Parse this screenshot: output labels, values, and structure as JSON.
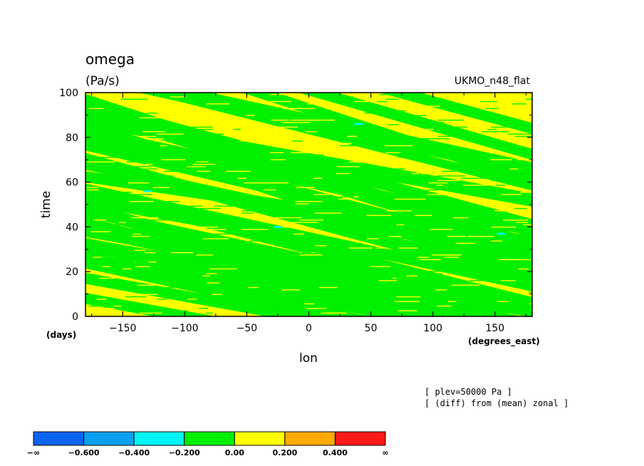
{
  "chart_data": {
    "type": "heatmap",
    "title": "omega",
    "units": "(Pa/s)",
    "dataset": "UKMO_n48_flat",
    "xlabel": "lon",
    "xunits": "(degrees_east)",
    "ylabel": "time",
    "yunits": "(days)",
    "xlim": [
      -180,
      180
    ],
    "ylim": [
      0,
      100
    ],
    "xticks": [
      -150,
      -100,
      -50,
      0,
      50,
      100,
      150
    ],
    "yticks": [
      0,
      20,
      40,
      60,
      80,
      100
    ],
    "annotations": [
      "[ plev=50000 Pa ]",
      "[ (diff) from (mean) zonal ]"
    ],
    "colorbar": {
      "labels": [
        "-∞",
        "-0.600",
        "-0.400",
        "-0.200",
        "0.00",
        "0.200",
        "0.400",
        "∞"
      ],
      "colors": [
        "#0a64f0",
        "#0aa0f0",
        "#00f5f5",
        "#00f000",
        "#ffff00",
        "#ffaa00",
        "#ff1a1a"
      ]
    },
    "background_bin_color": "#ffff00",
    "bands": [
      {
        "x0": -180,
        "y0": 95,
        "slope": -0.15,
        "width": 5
      },
      {
        "x0": -150,
        "y0": 92,
        "slope": -0.18,
        "width": 4
      },
      {
        "x0": -90,
        "y0": 96,
        "slope": -0.14,
        "width": 4
      },
      {
        "x0": 20,
        "y0": 98,
        "slope": -0.16,
        "width": 5
      },
      {
        "x0": 80,
        "y0": 99,
        "slope": -0.15,
        "width": 5
      },
      {
        "x0": -180,
        "y0": 82,
        "slope": -0.12,
        "width": 6
      },
      {
        "x0": -120,
        "y0": 82,
        "slope": -0.17,
        "width": 6
      },
      {
        "x0": 60,
        "y0": 82,
        "slope": -0.18,
        "width": 5
      },
      {
        "x0": 100,
        "y0": 75,
        "slope": -0.12,
        "width": 7
      },
      {
        "x0": -180,
        "y0": 68,
        "slope": -0.12,
        "width": 5
      },
      {
        "x0": -100,
        "y0": 70,
        "slope": -0.18,
        "width": 7
      },
      {
        "x0": -40,
        "y0": 60,
        "slope": -0.15,
        "width": 6
      },
      {
        "x0": 80,
        "y0": 62,
        "slope": -0.1,
        "width": 6
      },
      {
        "x0": -180,
        "y0": 52,
        "slope": -0.1,
        "width": 5
      },
      {
        "x0": -60,
        "y0": 52,
        "slope": -0.15,
        "width": 6
      },
      {
        "x0": 40,
        "y0": 48,
        "slope": -0.13,
        "width": 5
      },
      {
        "x0": -180,
        "y0": 42,
        "slope": -0.14,
        "width": 5
      },
      {
        "x0": -40,
        "y0": 40,
        "slope": -0.12,
        "width": 5
      },
      {
        "x0": 100,
        "y0": 40,
        "slope": -0.08,
        "width": 5
      },
      {
        "x0": -180,
        "y0": 30,
        "slope": -0.12,
        "width": 5
      },
      {
        "x0": -150,
        "y0": 28,
        "slope": -0.12,
        "width": 7
      },
      {
        "x0": -60,
        "y0": 30,
        "slope": -0.15,
        "width": 6
      },
      {
        "x0": 20,
        "y0": 28,
        "slope": -0.14,
        "width": 6
      },
      {
        "x0": -180,
        "y0": 17,
        "slope": -0.1,
        "width": 5
      },
      {
        "x0": -100,
        "y0": 18,
        "slope": -0.14,
        "width": 5
      },
      {
        "x0": -20,
        "y0": 20,
        "slope": -0.12,
        "width": 6
      },
      {
        "x0": 60,
        "y0": 18,
        "slope": -0.12,
        "width": 5
      },
      {
        "x0": -180,
        "y0": 8,
        "slope": -0.1,
        "width": 5
      },
      {
        "x0": -60,
        "y0": 10,
        "slope": -0.12,
        "width": 6
      },
      {
        "x0": 40,
        "y0": 10,
        "slope": -0.1,
        "width": 6
      },
      {
        "x0": 120,
        "y0": 8,
        "slope": -0.1,
        "width": 5
      }
    ],
    "cyan_spots": [
      {
        "lon": 155,
        "time": 37
      },
      {
        "lon": 40,
        "time": 86
      },
      {
        "lon": -130,
        "time": 56
      },
      {
        "lon": -25,
        "time": 40
      }
    ]
  }
}
